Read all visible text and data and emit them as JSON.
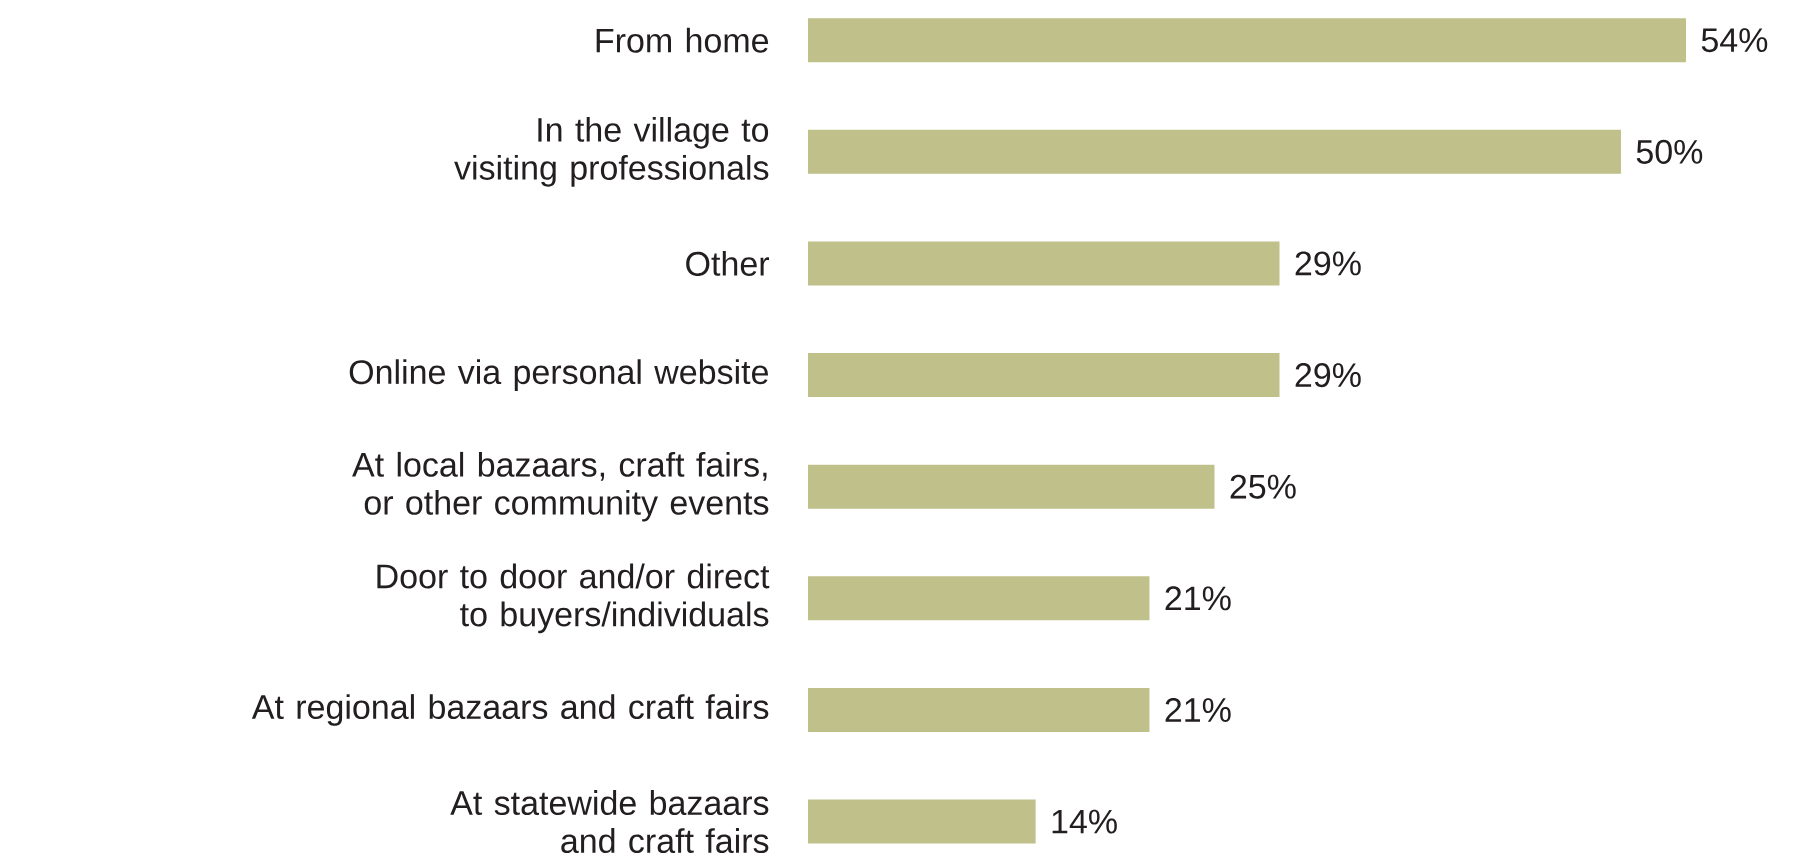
{
  "chart_data": {
    "type": "bar",
    "orientation": "horizontal",
    "color": "#bfc08a",
    "tick_labels": "y",
    "categories": [
      "From home",
      "In the village to visiting professionals",
      "Other",
      "Online via personal website",
      "At local bazaars, craft fairs, or other community events",
      "Door to door and/or direct to buyers/individuals",
      "At regional bazaars and craft fairs",
      "At statewide bazaars and craft fairs"
    ],
    "values": [
      54,
      50,
      29,
      29,
      25,
      21,
      21,
      14
    ],
    "value_labels": [
      "54%",
      "50%",
      "29%",
      "29%",
      "25%",
      "21%",
      "21%",
      "14%"
    ]
  }
}
